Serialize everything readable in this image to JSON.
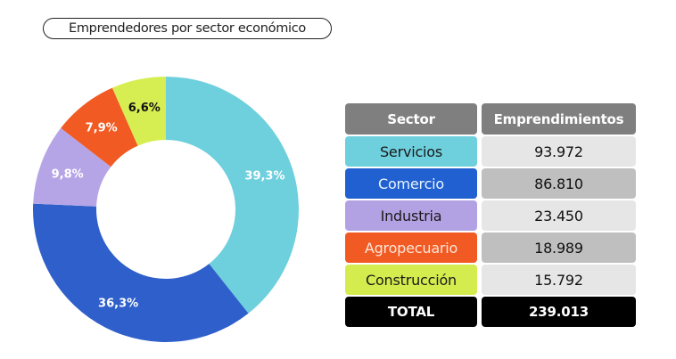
{
  "chart_data": {
    "type": "pie",
    "title": "Emprendedores por sector económico",
    "slices": [
      {
        "label": "Servicios",
        "value": 39.3,
        "label_text": "39,3%",
        "color": "#6ecfdd",
        "text_color": "#ffffff"
      },
      {
        "label": "Comercio",
        "value": 36.3,
        "label_text": "36,3%",
        "color": "#2f5fca",
        "text_color": "#ffffff"
      },
      {
        "label": "Industria",
        "value": 9.8,
        "label_text": "9,8%",
        "color": "#b6a5e6",
        "text_color": "#ffffff"
      },
      {
        "label": "Agropecuario",
        "value": 7.9,
        "label_text": "7,9%",
        "color": "#f15a22",
        "text_color": "#ffffff"
      },
      {
        "label": "Construcción",
        "value": 6.6,
        "label_text": "6,6%",
        "color": "#d6ee52",
        "text_color": "#111111"
      }
    ],
    "donut": true,
    "start": "top",
    "direction": "clockwise"
  },
  "table": {
    "headers": [
      "Sector",
      "Emprendimientos"
    ],
    "rows": [
      {
        "sector": "Servicios",
        "value": "93.972",
        "bg": "#6ecfdd",
        "fg": "#1a1a1a",
        "vbg": "#e6e6e6"
      },
      {
        "sector": "Comercio",
        "value": "86.810",
        "bg": "#2160d0",
        "fg": "#e8f4ff",
        "vbg": "#bfbfbf"
      },
      {
        "sector": "Industria",
        "value": "23.450",
        "bg": "#b3a2e3",
        "fg": "#1a1a1a",
        "vbg": "#e6e6e6"
      },
      {
        "sector": "Agropecuario",
        "value": "18.989",
        "bg": "#f15a22",
        "fg": "#fde6da",
        "vbg": "#bfbfbf"
      },
      {
        "sector": "Construcción",
        "value": "15.792",
        "bg": "#d5ec4e",
        "fg": "#1a1a1a",
        "vbg": "#e6e6e6"
      }
    ],
    "total_label": "TOTAL",
    "total_value": "239.013"
  }
}
